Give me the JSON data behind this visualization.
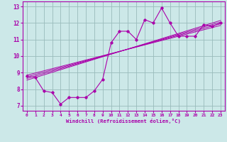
{
  "xlabel": "Windchill (Refroidissement éolien,°C)",
  "bg_color": "#cce8e8",
  "line_color": "#aa00aa",
  "grid_color": "#99bbbb",
  "xlim": [
    -0.5,
    23.5
  ],
  "ylim": [
    6.7,
    13.3
  ],
  "xticks": [
    0,
    1,
    2,
    3,
    4,
    5,
    6,
    7,
    8,
    9,
    10,
    11,
    12,
    13,
    14,
    15,
    16,
    17,
    18,
    19,
    20,
    21,
    22,
    23
  ],
  "yticks": [
    7,
    8,
    9,
    10,
    11,
    12,
    13
  ],
  "main_data_x": [
    0,
    1,
    2,
    3,
    4,
    5,
    6,
    7,
    8,
    9,
    10,
    11,
    12,
    13,
    14,
    15,
    16,
    17,
    18,
    19,
    20,
    21,
    22,
    23
  ],
  "main_data_y": [
    8.8,
    8.7,
    7.9,
    7.8,
    7.1,
    7.5,
    7.5,
    7.5,
    7.9,
    8.6,
    10.8,
    11.5,
    11.5,
    11.0,
    12.2,
    12.0,
    12.9,
    12.0,
    11.2,
    11.2,
    11.2,
    11.9,
    11.8,
    12.0
  ],
  "trend_lines": [
    {
      "x0": 0,
      "y0": 8.85,
      "x1": 23,
      "y1": 11.85
    },
    {
      "x0": 0,
      "y0": 8.75,
      "x1": 23,
      "y1": 11.95
    },
    {
      "x0": 0,
      "y0": 8.65,
      "x1": 23,
      "y1": 12.05
    },
    {
      "x0": 0,
      "y0": 8.55,
      "x1": 23,
      "y1": 12.15
    }
  ]
}
